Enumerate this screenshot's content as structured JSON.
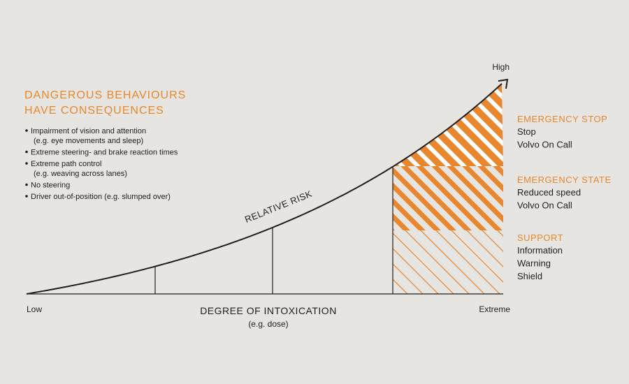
{
  "title": [
    "DANGEROUS BEHAVIOURS",
    "HAVE CONSEQUENCES"
  ],
  "bullets": [
    [
      "Impairment of vision and attention",
      "(e.g. eye movements and sleep)"
    ],
    [
      "Extreme steering- and brake reaction times"
    ],
    [
      "Extreme path control",
      "(e.g. weaving across lanes)"
    ],
    [
      "No steering"
    ],
    [
      "Driver out-of-position (e.g. slumped over)"
    ]
  ],
  "curve_label": "RELATIVE RISK",
  "y_axis": {
    "top": "High"
  },
  "x_axis": {
    "start": "Low",
    "end": "Extreme",
    "title": "DEGREE OF INTOXICATION",
    "subtitle": "(e.g. dose)"
  },
  "zones": [
    {
      "title": "EMERGENCY STOP",
      "items": [
        "Stop",
        "Volvo On Call"
      ]
    },
    {
      "title": "EMERGENCY STATE",
      "items": [
        "Reduced speed",
        "Volvo On Call"
      ]
    },
    {
      "title": "SUPPORT",
      "items": [
        "Information",
        "Warning",
        "Shield"
      ]
    }
  ]
}
